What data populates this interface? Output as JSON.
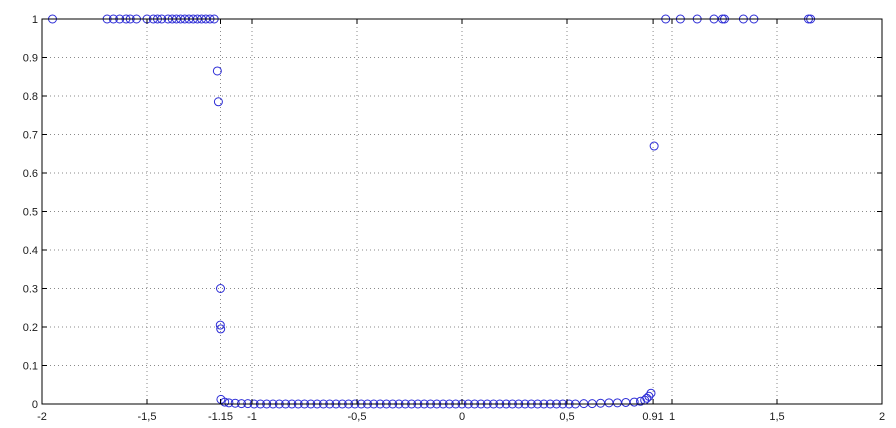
{
  "chart_data": {
    "type": "scatter",
    "title": "",
    "xlabel": "",
    "ylabel": "",
    "xlim": [
      -2,
      2
    ],
    "ylim": [
      0,
      1
    ],
    "grid": true,
    "marker": "circle",
    "color": "#2b2bd6",
    "x_ticks": [
      {
        "value": -2,
        "label": "-2"
      },
      {
        "value": -1.5,
        "label": "-1,5"
      },
      {
        "value": -1.15,
        "label": "-1.15"
      },
      {
        "value": -1,
        "label": "-1"
      },
      {
        "value": -0.5,
        "label": "-0,5"
      },
      {
        "value": 0,
        "label": "0"
      },
      {
        "value": 0.5,
        "label": "0,5"
      },
      {
        "value": 0.91,
        "label": "0.91"
      },
      {
        "value": 1,
        "label": "1"
      },
      {
        "value": 1.5,
        "label": "1,5"
      },
      {
        "value": 2,
        "label": "2"
      }
    ],
    "y_ticks": [
      {
        "value": 0,
        "label": "0"
      },
      {
        "value": 0.1,
        "label": "0.1"
      },
      {
        "value": 0.2,
        "label": "0.2"
      },
      {
        "value": 0.3,
        "label": "0.3"
      },
      {
        "value": 0.4,
        "label": "0.4"
      },
      {
        "value": 0.5,
        "label": "0.5"
      },
      {
        "value": 0.6,
        "label": "0.6"
      },
      {
        "value": 0.7,
        "label": "0.7"
      },
      {
        "value": 0.8,
        "label": "0.8"
      },
      {
        "value": 0.9,
        "label": "0.9"
      },
      {
        "value": 1,
        "label": "1"
      }
    ],
    "series": [
      {
        "points": [
          [
            -1.95,
            1
          ],
          [
            -1.69,
            1
          ],
          [
            -1.66,
            1
          ],
          [
            -1.63,
            1
          ],
          [
            -1.6,
            1
          ],
          [
            -1.58,
            1
          ],
          [
            -1.55,
            1
          ],
          [
            -1.5,
            1
          ],
          [
            -1.47,
            1
          ],
          [
            -1.45,
            1
          ],
          [
            -1.43,
            1
          ],
          [
            -1.4,
            1
          ],
          [
            -1.38,
            1
          ],
          [
            -1.36,
            1
          ],
          [
            -1.34,
            1
          ],
          [
            -1.32,
            1
          ],
          [
            -1.3,
            1
          ],
          [
            -1.28,
            1
          ],
          [
            -1.26,
            1
          ],
          [
            -1.24,
            1
          ],
          [
            -1.22,
            1
          ],
          [
            -1.2,
            1
          ],
          [
            -1.18,
            1
          ],
          [
            -1.165,
            0.865
          ],
          [
            -1.16,
            0.785
          ],
          [
            -1.15,
            0.3
          ],
          [
            -1.151,
            0.205
          ],
          [
            -1.149,
            0.195
          ],
          [
            -1.148,
            0.012
          ],
          [
            -1.13,
            0.005
          ],
          [
            -1.11,
            0.003
          ],
          [
            -1.08,
            0.002
          ],
          [
            -1.05,
            0.001
          ],
          [
            -1.02,
            0.001
          ],
          [
            -0.99,
            0
          ],
          [
            -0.96,
            0
          ],
          [
            -0.93,
            0
          ],
          [
            -0.9,
            0
          ],
          [
            -0.87,
            0
          ],
          [
            -0.84,
            0
          ],
          [
            -0.81,
            0
          ],
          [
            -0.78,
            0
          ],
          [
            -0.75,
            0
          ],
          [
            -0.72,
            0
          ],
          [
            -0.69,
            0
          ],
          [
            -0.66,
            0
          ],
          [
            -0.63,
            0
          ],
          [
            -0.6,
            0
          ],
          [
            -0.57,
            0
          ],
          [
            -0.54,
            0
          ],
          [
            -0.51,
            0
          ],
          [
            -0.48,
            0
          ],
          [
            -0.45,
            0
          ],
          [
            -0.42,
            0
          ],
          [
            -0.39,
            0
          ],
          [
            -0.36,
            0
          ],
          [
            -0.33,
            0
          ],
          [
            -0.3,
            0
          ],
          [
            -0.27,
            0
          ],
          [
            -0.24,
            0
          ],
          [
            -0.21,
            0
          ],
          [
            -0.18,
            0
          ],
          [
            -0.15,
            0
          ],
          [
            -0.12,
            0
          ],
          [
            -0.09,
            0
          ],
          [
            -0.06,
            0
          ],
          [
            -0.03,
            0
          ],
          [
            0,
            0
          ],
          [
            0.03,
            0
          ],
          [
            0.06,
            0
          ],
          [
            0.09,
            0
          ],
          [
            0.12,
            0
          ],
          [
            0.15,
            0
          ],
          [
            0.18,
            0
          ],
          [
            0.21,
            0
          ],
          [
            0.24,
            0
          ],
          [
            0.27,
            0
          ],
          [
            0.3,
            0
          ],
          [
            0.33,
            0
          ],
          [
            0.36,
            0
          ],
          [
            0.39,
            0
          ],
          [
            0.42,
            0
          ],
          [
            0.45,
            0
          ],
          [
            0.48,
            0
          ],
          [
            0.51,
            0
          ],
          [
            0.54,
            0
          ],
          [
            0.58,
            0.001
          ],
          [
            0.62,
            0.001
          ],
          [
            0.66,
            0.002
          ],
          [
            0.7,
            0.003
          ],
          [
            0.74,
            0.003
          ],
          [
            0.78,
            0.004
          ],
          [
            0.82,
            0.005
          ],
          [
            0.85,
            0.007
          ],
          [
            0.87,
            0.01
          ],
          [
            0.88,
            0.015
          ],
          [
            0.89,
            0.02
          ],
          [
            0.9,
            0.028
          ],
          [
            0.915,
            0.67
          ],
          [
            0.97,
            1
          ],
          [
            1.04,
            1
          ],
          [
            1.12,
            1
          ],
          [
            1.2,
            1
          ],
          [
            1.24,
            1
          ],
          [
            1.25,
            1
          ],
          [
            1.34,
            1
          ],
          [
            1.39,
            1
          ],
          [
            1.65,
            1
          ],
          [
            1.66,
            1
          ]
        ]
      }
    ]
  }
}
